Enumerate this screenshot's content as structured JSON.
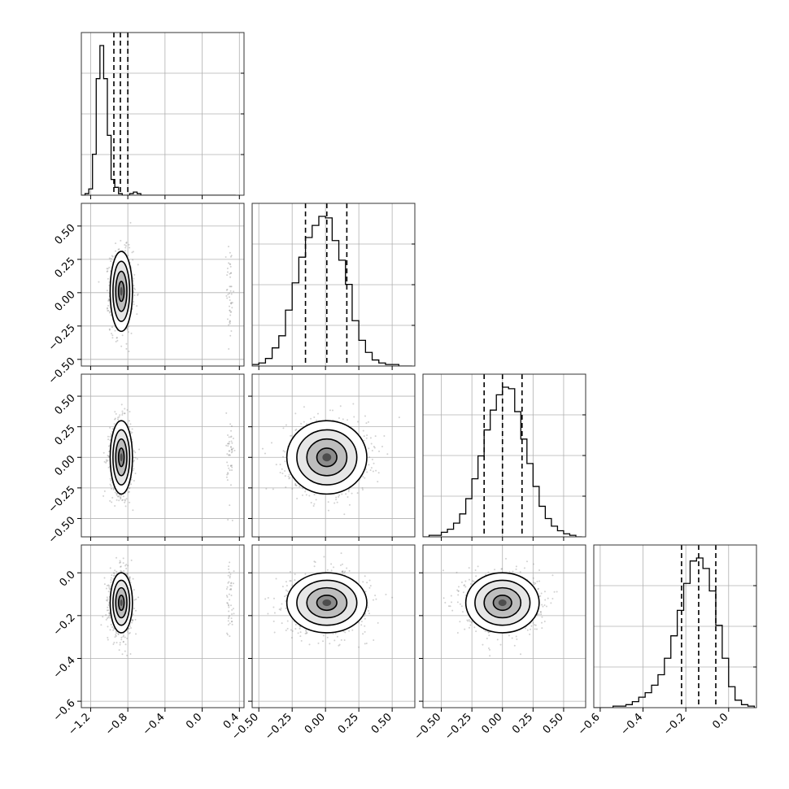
{
  "chart_data": {
    "type": "corner",
    "parameters": 4,
    "parameter_labels": [],
    "ranges": [
      [
        -1.3,
        0.45
      ],
      [
        -0.55,
        0.67
      ],
      [
        -0.65,
        0.68
      ],
      [
        -0.63,
        0.13
      ]
    ],
    "ticks": [
      [
        -1.2,
        -0.8,
        -0.4,
        0.0,
        0.4
      ],
      [
        -0.5,
        -0.25,
        0.0,
        0.25,
        0.5
      ],
      [
        -0.5,
        -0.25,
        0.0,
        0.25,
        0.5
      ],
      [
        -0.6,
        -0.4,
        -0.2,
        0.0
      ]
    ],
    "tick_labels": [
      [
        "−1.2",
        "−0.8",
        "−0.4",
        "0.0",
        "0.4"
      ],
      [
        "−0.50",
        "−0.25",
        "0.00",
        "0.25",
        "0.50"
      ],
      [
        "−0.50",
        "−0.25",
        "0.00",
        "0.25",
        "0.50"
      ],
      [
        "−0.6",
        "−0.4",
        "−0.2",
        "0.0"
      ]
    ],
    "histograms": [
      {
        "bins": [
          -1.3,
          -1.26,
          -1.22,
          -1.18,
          -1.14,
          -1.1,
          -1.06,
          -1.02,
          -0.98,
          -0.94,
          -0.9,
          -0.86,
          -0.82,
          -0.78,
          -0.74,
          -0.7,
          -0.66,
          -0.62,
          0.2,
          0.24,
          0.28,
          0.32,
          0.36
        ],
        "counts": [
          0,
          0.01,
          0.04,
          0.26,
          0.74,
          0.95,
          0.74,
          0.38,
          0.1,
          0.05,
          0.01,
          0,
          0,
          0.01,
          0.02,
          0.01,
          0,
          0,
          0,
          0,
          0,
          0
        ],
        "quantiles": [
          -0.95,
          -0.88,
          -0.8
        ]
      },
      {
        "bins": [
          -0.55,
          -0.5,
          -0.45,
          -0.4,
          -0.35,
          -0.3,
          -0.25,
          -0.2,
          -0.15,
          -0.1,
          -0.05,
          0.0,
          0.05,
          0.1,
          0.15,
          0.2,
          0.25,
          0.3,
          0.35,
          0.4,
          0.45,
          0.5,
          0.55,
          0.6,
          0.65
        ],
        "counts": [
          0.01,
          0.02,
          0.05,
          0.12,
          0.2,
          0.37,
          0.55,
          0.72,
          0.85,
          0.93,
          0.99,
          0.98,
          0.83,
          0.7,
          0.54,
          0.3,
          0.17,
          0.09,
          0.04,
          0.02,
          0.01,
          0.01,
          0,
          0
        ],
        "quantiles": [
          -0.15,
          0.01,
          0.16
        ]
      },
      {
        "bins": [
          -0.65,
          -0.6,
          -0.55,
          -0.5,
          -0.45,
          -0.4,
          -0.35,
          -0.3,
          -0.25,
          -0.2,
          -0.15,
          -0.1,
          -0.05,
          0.0,
          0.05,
          0.1,
          0.15,
          0.2,
          0.25,
          0.3,
          0.35,
          0.4,
          0.45,
          0.5,
          0.55,
          0.6,
          0.65
        ],
        "counts": [
          0,
          0.01,
          0.01,
          0.03,
          0.05,
          0.09,
          0.15,
          0.25,
          0.38,
          0.53,
          0.7,
          0.83,
          0.93,
          0.98,
          0.97,
          0.82,
          0.64,
          0.48,
          0.33,
          0.2,
          0.12,
          0.07,
          0.04,
          0.02,
          0.01,
          0
        ],
        "quantiles": [
          -0.15,
          0.0,
          0.16
        ]
      },
      {
        "bins": [
          -0.63,
          -0.6,
          -0.57,
          -0.54,
          -0.51,
          -0.48,
          -0.45,
          -0.42,
          -0.39,
          -0.36,
          -0.33,
          -0.3,
          -0.27,
          -0.24,
          -0.21,
          -0.18,
          -0.15,
          -0.12,
          -0.09,
          -0.06,
          -0.03,
          0.0,
          0.03,
          0.06,
          0.09,
          0.12
        ],
        "counts": [
          0,
          0,
          0,
          0.01,
          0.01,
          0.02,
          0.04,
          0.07,
          0.1,
          0.15,
          0.22,
          0.33,
          0.48,
          0.65,
          0.83,
          0.98,
          1.0,
          0.93,
          0.78,
          0.55,
          0.33,
          0.14,
          0.05,
          0.02,
          0.01
        ],
        "quantiles": [
          -0.22,
          -0.14,
          -0.06
        ]
      }
    ],
    "means": [
      -0.87,
      0.01,
      0.0,
      -0.14
    ],
    "sigmas": [
      0.06,
      0.15,
      0.15,
      0.07
    ],
    "minor_mode": {
      "param": 0,
      "value": 0.3,
      "weight": 0.02
    },
    "contour_levels": [
      0.5,
      1.0,
      1.5,
      2.0
    ],
    "quantile_levels": [
      0.16,
      0.5,
      0.84
    ]
  }
}
